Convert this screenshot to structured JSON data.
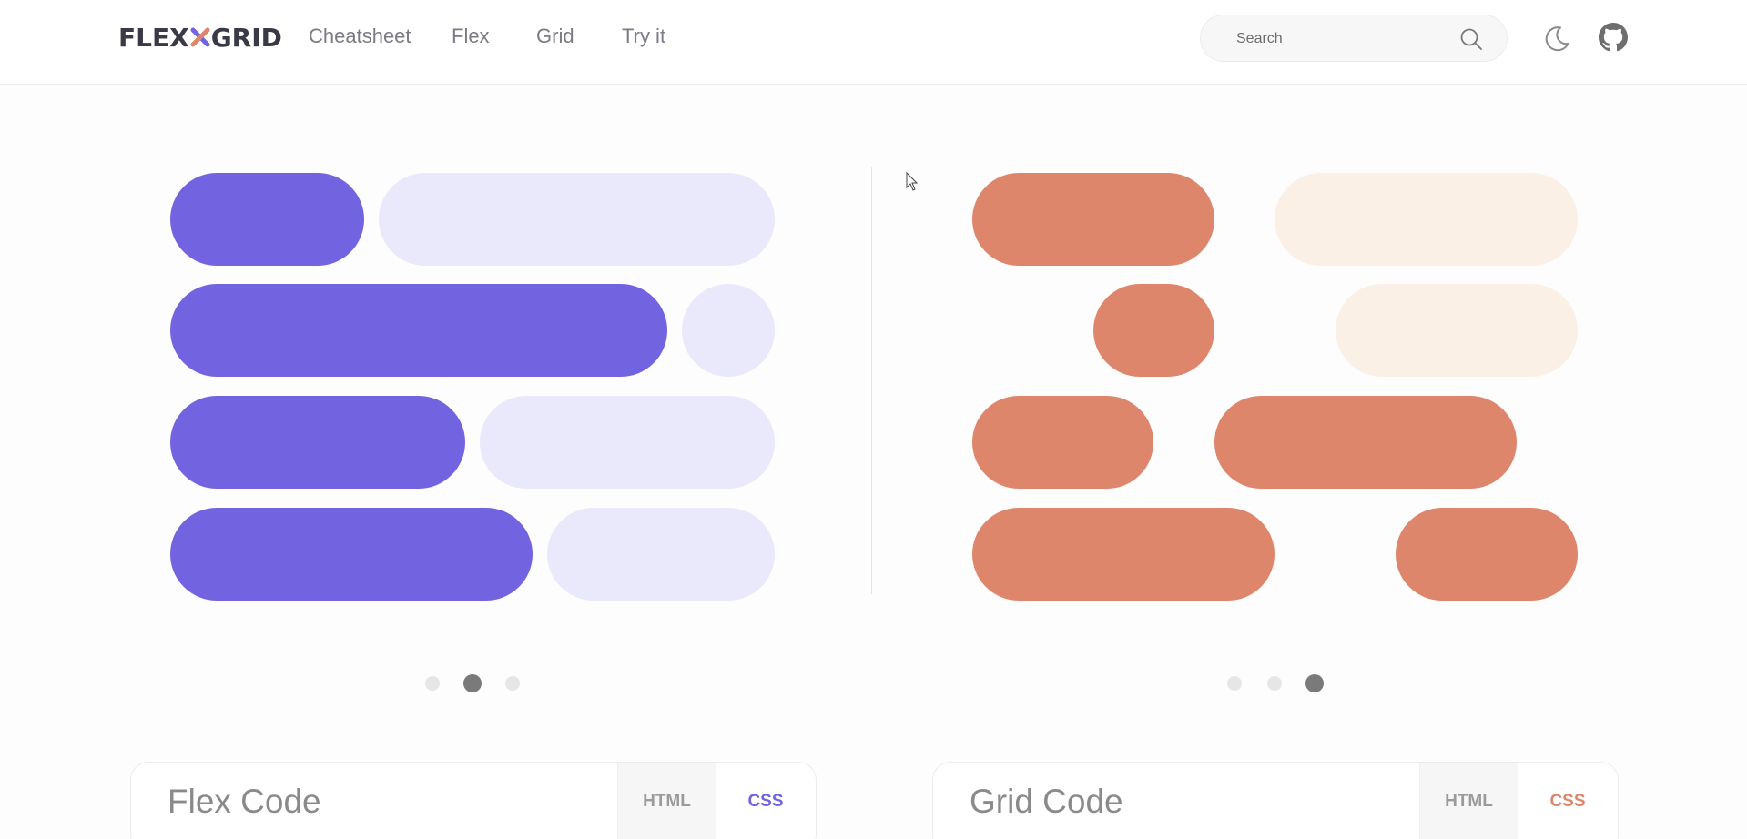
{
  "header": {
    "logo": {
      "left": "FLEX",
      "right": "GRID"
    },
    "nav": [
      {
        "label": "Cheatsheet"
      },
      {
        "label": "Flex"
      },
      {
        "label": "Grid"
      },
      {
        "label": "Try it"
      }
    ],
    "search": {
      "placeholder": "Search",
      "icon": "search-icon"
    },
    "theme_icon": "moon-icon",
    "github_icon": "github-icon"
  },
  "colors": {
    "flex_accent": "#7264e0",
    "flex_light": "#eae9fb",
    "grid_accent": "#de866b",
    "grid_light": "#faf0e6",
    "dot_active": "#7a7a7a",
    "dot_inactive": "#e6e6e6"
  },
  "carousels": {
    "flex": {
      "slides": 3,
      "active_slide": 2
    },
    "grid": {
      "slides": 3,
      "active_slide": 3
    }
  },
  "cards": {
    "flex": {
      "title": "Flex Code",
      "tab_html": "HTML",
      "tab_css": "CSS",
      "active_tab": "CSS"
    },
    "grid": {
      "title": "Grid Code",
      "tab_html": "HTML",
      "tab_css": "CSS",
      "active_tab": "CSS"
    }
  }
}
